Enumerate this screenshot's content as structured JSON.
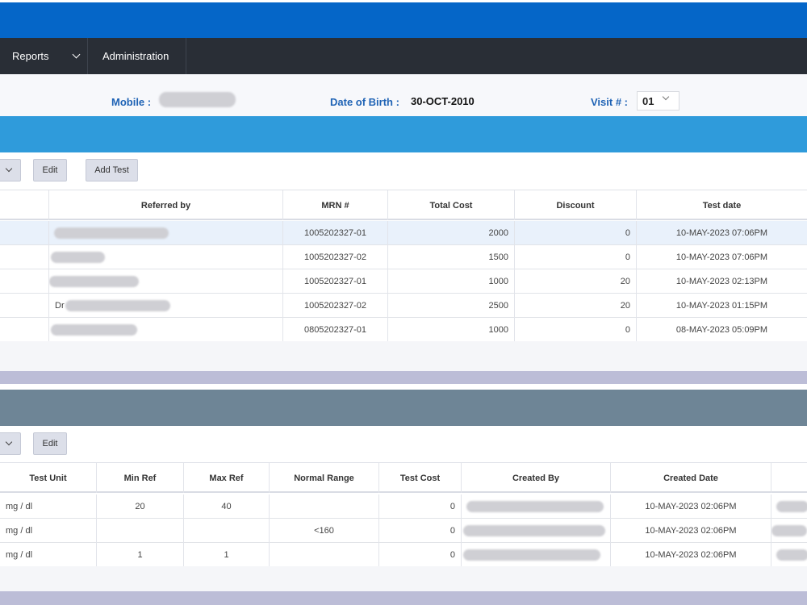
{
  "nav": {
    "reports_label": "Reports",
    "administration_label": "Administration"
  },
  "patient_info": {
    "mobile_label": "Mobile :",
    "dob_label": "Date of Birth :",
    "dob_value": "30-OCT-2010",
    "visit_label": "Visit # :",
    "visit_value": "01"
  },
  "tests_toolbar": {
    "edit_label": "Edit",
    "add_test_label": "Add Test"
  },
  "tests_table": {
    "columns": [
      "Referred by",
      "MRN #",
      "Total Cost",
      "Discount",
      "Test date"
    ],
    "rows": [
      {
        "referred_by": "",
        "mrn": "1005202327-01",
        "total_cost": "2000",
        "discount": "0",
        "test_date": "10-MAY-2023 07:06PM"
      },
      {
        "referred_by": "",
        "mrn": "1005202327-02",
        "total_cost": "1500",
        "discount": "0",
        "test_date": "10-MAY-2023 07:06PM"
      },
      {
        "referred_by": "",
        "mrn": "1005202327-01",
        "total_cost": "1000",
        "discount": "20",
        "test_date": "10-MAY-2023 02:13PM"
      },
      {
        "referred_by": "Dr",
        "mrn": "1005202327-02",
        "total_cost": "2500",
        "discount": "20",
        "test_date": "10-MAY-2023 01:15PM"
      },
      {
        "referred_by": "",
        "mrn": "0805202327-01",
        "total_cost": "1000",
        "discount": "0",
        "test_date": "08-MAY-2023 05:09PM"
      }
    ]
  },
  "details_toolbar": {
    "edit_label": "Edit"
  },
  "details_table": {
    "columns": [
      "Test Unit",
      "Min Ref",
      "Max Ref",
      "Normal Range",
      "Test Cost",
      "Created By",
      "Created Date"
    ],
    "rows": [
      {
        "unit": "mg / dl",
        "min_ref": "20",
        "max_ref": "40",
        "normal_range": "",
        "test_cost": "0",
        "created_by": "",
        "created_date": "10-MAY-2023 02:06PM"
      },
      {
        "unit": "mg / dl",
        "min_ref": "",
        "max_ref": "",
        "normal_range": "<160",
        "test_cost": "0",
        "created_by": "",
        "created_date": "10-MAY-2023 02:06PM"
      },
      {
        "unit": "mg / dl",
        "min_ref": "1",
        "max_ref": "1",
        "normal_range": "",
        "test_cost": "0",
        "created_by": "",
        "created_date": "10-MAY-2023 02:06PM"
      }
    ]
  },
  "colors": {
    "topbar": "#0566c8",
    "navbar": "#292e36",
    "section_band_blue": "#2f9bdb",
    "section_band_gray": "#6e8596",
    "label_blue": "#1f63b5"
  }
}
